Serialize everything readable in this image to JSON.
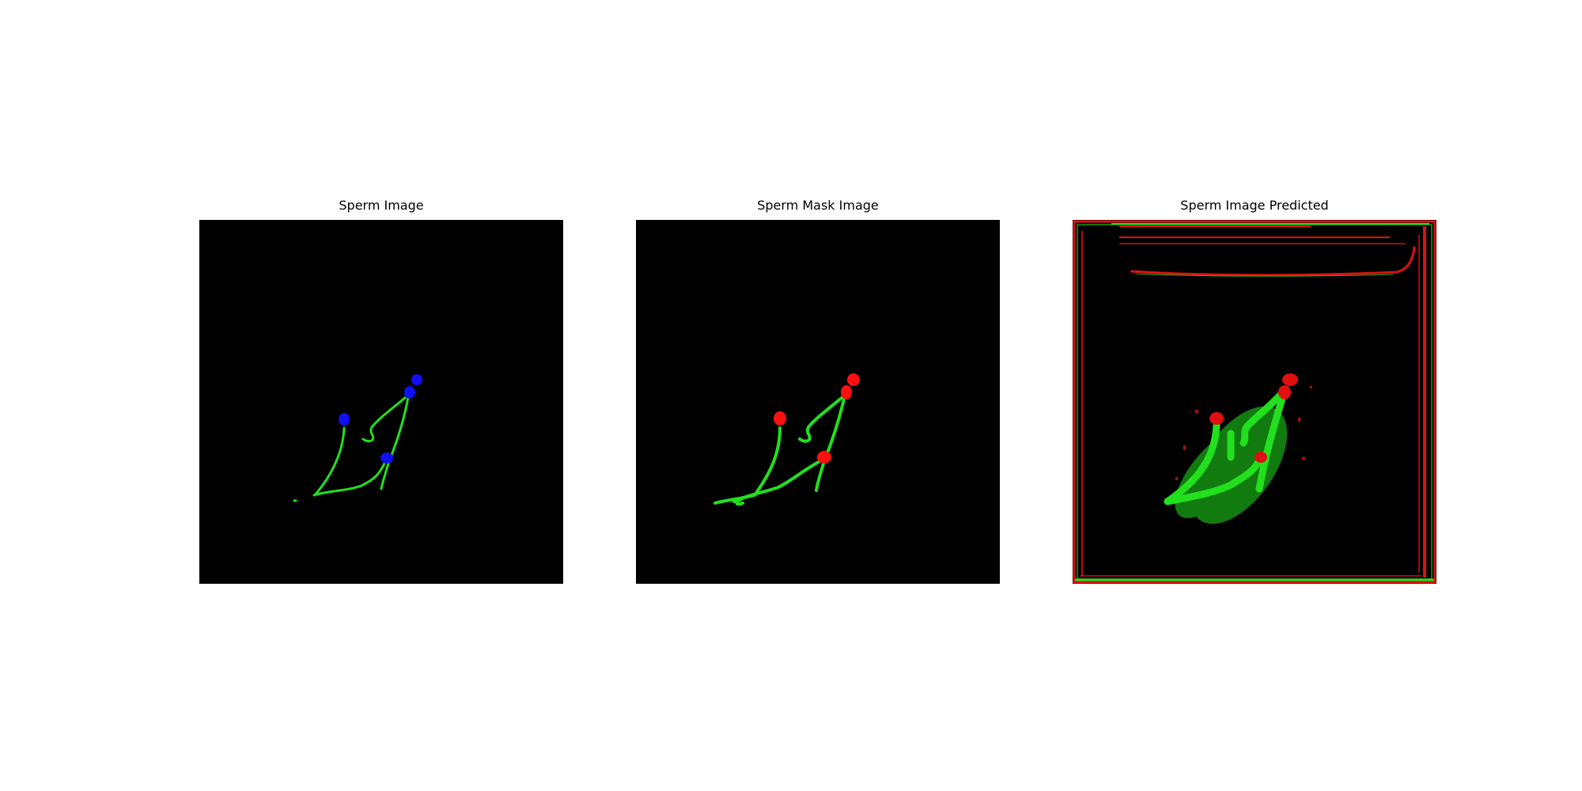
{
  "panels": [
    {
      "title": "Sperm Image"
    },
    {
      "title": "Sperm Mask Image"
    },
    {
      "title": "Sperm Image Predicted"
    }
  ],
  "colors": {
    "background": "#000000",
    "tail": "#22e01e",
    "head_input": "#1010f0",
    "head_mask": "#ff1010",
    "noise_red": "#e01010"
  }
}
